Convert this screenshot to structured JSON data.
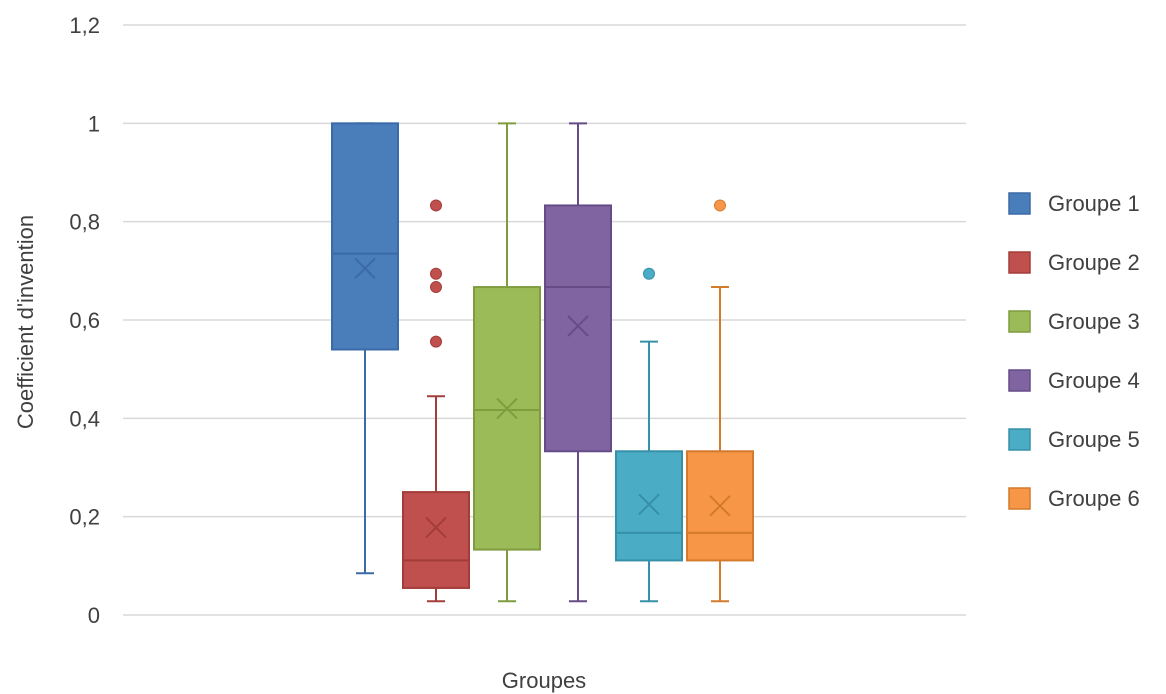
{
  "chart_data": {
    "type": "boxplot",
    "xlabel": "Groupes",
    "ylabel": "Coefficient d'invention",
    "ylim": [
      0,
      1.2
    ],
    "yticks": [
      "0",
      "0,2",
      "0,4",
      "0,6",
      "0,8",
      "1",
      "1,2"
    ],
    "grid": true,
    "legend_position": "right",
    "series": [
      {
        "name": "Groupe 1",
        "color": "#4a7ebb",
        "stroke": "#3b6aa8",
        "min": 0.085,
        "q1": 0.54,
        "median": 0.735,
        "q3": 1.0,
        "max": 1.0,
        "mean": 0.705,
        "outliers": []
      },
      {
        "name": "Groupe 2",
        "color": "#c0504d",
        "stroke": "#a33d3a",
        "min": 0.028,
        "q1": 0.055,
        "median": 0.111,
        "q3": 0.25,
        "max": 0.445,
        "mean": 0.178,
        "outliers": [
          0.556,
          0.667,
          0.694,
          0.833
        ]
      },
      {
        "name": "Groupe 3",
        "color": "#9bbb59",
        "stroke": "#7f9c3f",
        "min": 0.028,
        "q1": 0.133,
        "median": 0.417,
        "q3": 0.667,
        "max": 1.0,
        "mean": 0.42,
        "outliers": []
      },
      {
        "name": "Groupe 4",
        "color": "#8064a2",
        "stroke": "#654c87",
        "min": 0.028,
        "q1": 0.333,
        "median": 0.667,
        "q3": 0.833,
        "max": 1.0,
        "mean": 0.588,
        "outliers": []
      },
      {
        "name": "Groupe 5",
        "color": "#4bacc6",
        "stroke": "#3690a8",
        "min": 0.028,
        "q1": 0.111,
        "median": 0.167,
        "q3": 0.333,
        "max": 0.556,
        "mean": 0.225,
        "outliers": [
          0.694
        ]
      },
      {
        "name": "Groupe 6",
        "color": "#f79646",
        "stroke": "#d47a2c",
        "min": 0.028,
        "q1": 0.111,
        "median": 0.167,
        "q3": 0.333,
        "max": 0.667,
        "mean": 0.222,
        "outliers": [
          0.833
        ]
      }
    ]
  }
}
